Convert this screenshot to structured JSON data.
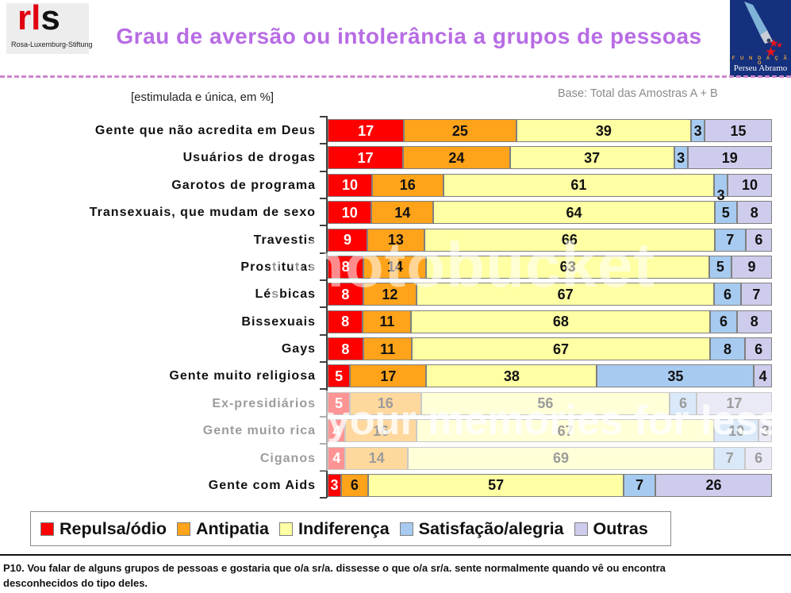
{
  "header": {
    "title": "Grau de aversão ou intolerância a grupos de pessoas",
    "logo_left": {
      "word_r": "r",
      "word_l": "l",
      "word_s": "s",
      "subtitle": "Rosa-Luxemburg-Stiftung"
    },
    "logo_right": {
      "fundacao": "F U N D A Ç Ã O",
      "name": "Perseu Abramo"
    }
  },
  "subtitle_left": "[estimulada e única, em %]",
  "base_note": "Base: Total das Amostras A + B",
  "chart_data": {
    "type": "bar",
    "stacked": true,
    "orientation": "horizontal",
    "unit": "%",
    "x_range": [
      0,
      100
    ],
    "series": [
      {
        "name": "Repulsa/ódio",
        "color": "#ff0000"
      },
      {
        "name": "Antipatia",
        "color": "#ffa31a"
      },
      {
        "name": "Indiferença",
        "color": "#ffffa3"
      },
      {
        "name": "Satisfação/alegria",
        "color": "#a7cbf0"
      },
      {
        "name": "Outras",
        "color": "#cdccec"
      }
    ],
    "categories": [
      "Gente que não acredita em Deus",
      "Usuários de drogas",
      "Garotos de programa",
      "Transexuais, que mudam de sexo",
      "Travestis",
      "Prostitutas",
      "Lésbicas",
      "Bissexuais",
      "Gays",
      "Gente muito religiosa",
      "Ex-presidiários",
      "Gente muito rica",
      "Ciganos",
      "Gente com Aids"
    ],
    "rows": [
      {
        "label": "Gente que não acredita em Deus",
        "values": [
          17,
          25,
          39,
          3,
          15
        ]
      },
      {
        "label": "Usuários de drogas",
        "values": [
          17,
          24,
          37,
          3,
          19
        ]
      },
      {
        "label": "Garotos de programa",
        "values": [
          10,
          16,
          61,
          3,
          10
        ],
        "label_below": 3
      },
      {
        "label": "Transexuais, que mudam de sexo",
        "values": [
          10,
          14,
          64,
          5,
          8
        ]
      },
      {
        "label": "Travestis",
        "values": [
          9,
          13,
          66,
          7,
          6
        ]
      },
      {
        "label": "Prostitutas",
        "values": [
          8,
          14,
          63,
          5,
          9
        ]
      },
      {
        "label": "Lésbicas",
        "values": [
          8,
          12,
          67,
          6,
          7
        ]
      },
      {
        "label": "Bissexuais",
        "values": [
          8,
          11,
          68,
          6,
          8
        ]
      },
      {
        "label": "Gays",
        "values": [
          8,
          11,
          67,
          8,
          6
        ]
      },
      {
        "label": "Gente muito religiosa",
        "values": [
          5,
          17,
          38,
          35,
          4
        ]
      },
      {
        "label": "Ex-presidiários",
        "values": [
          5,
          16,
          56,
          6,
          17
        ]
      },
      {
        "label": "Gente muito rica",
        "values": [
          4,
          16,
          67,
          10,
          3
        ]
      },
      {
        "label": "Ciganos",
        "values": [
          4,
          14,
          69,
          7,
          6
        ]
      },
      {
        "label": "Gente com Aids",
        "values": [
          3,
          6,
          57,
          7,
          26
        ]
      }
    ]
  },
  "legend": {
    "items": [
      {
        "label": "Repulsa/ódio",
        "color": "#ff0000"
      },
      {
        "label": "Antipatia",
        "color": "#ffa31a"
      },
      {
        "label": "Indiferença",
        "color": "#ffffa3"
      },
      {
        "label": "Satisfação/alegria",
        "color": "#a7cbf0"
      },
      {
        "label": "Outras",
        "color": "#cdccec"
      }
    ]
  },
  "watermark": {
    "text1": "photobucket",
    "text2": "your memories for less!"
  },
  "footer": {
    "text": "P10. Vou falar de alguns grupos de pessoas e gostaria que o/a sr/a. dissesse o que o/a sr/a. sente normalmente  quando vê ou encontra desconhecidos do tipo deles."
  }
}
